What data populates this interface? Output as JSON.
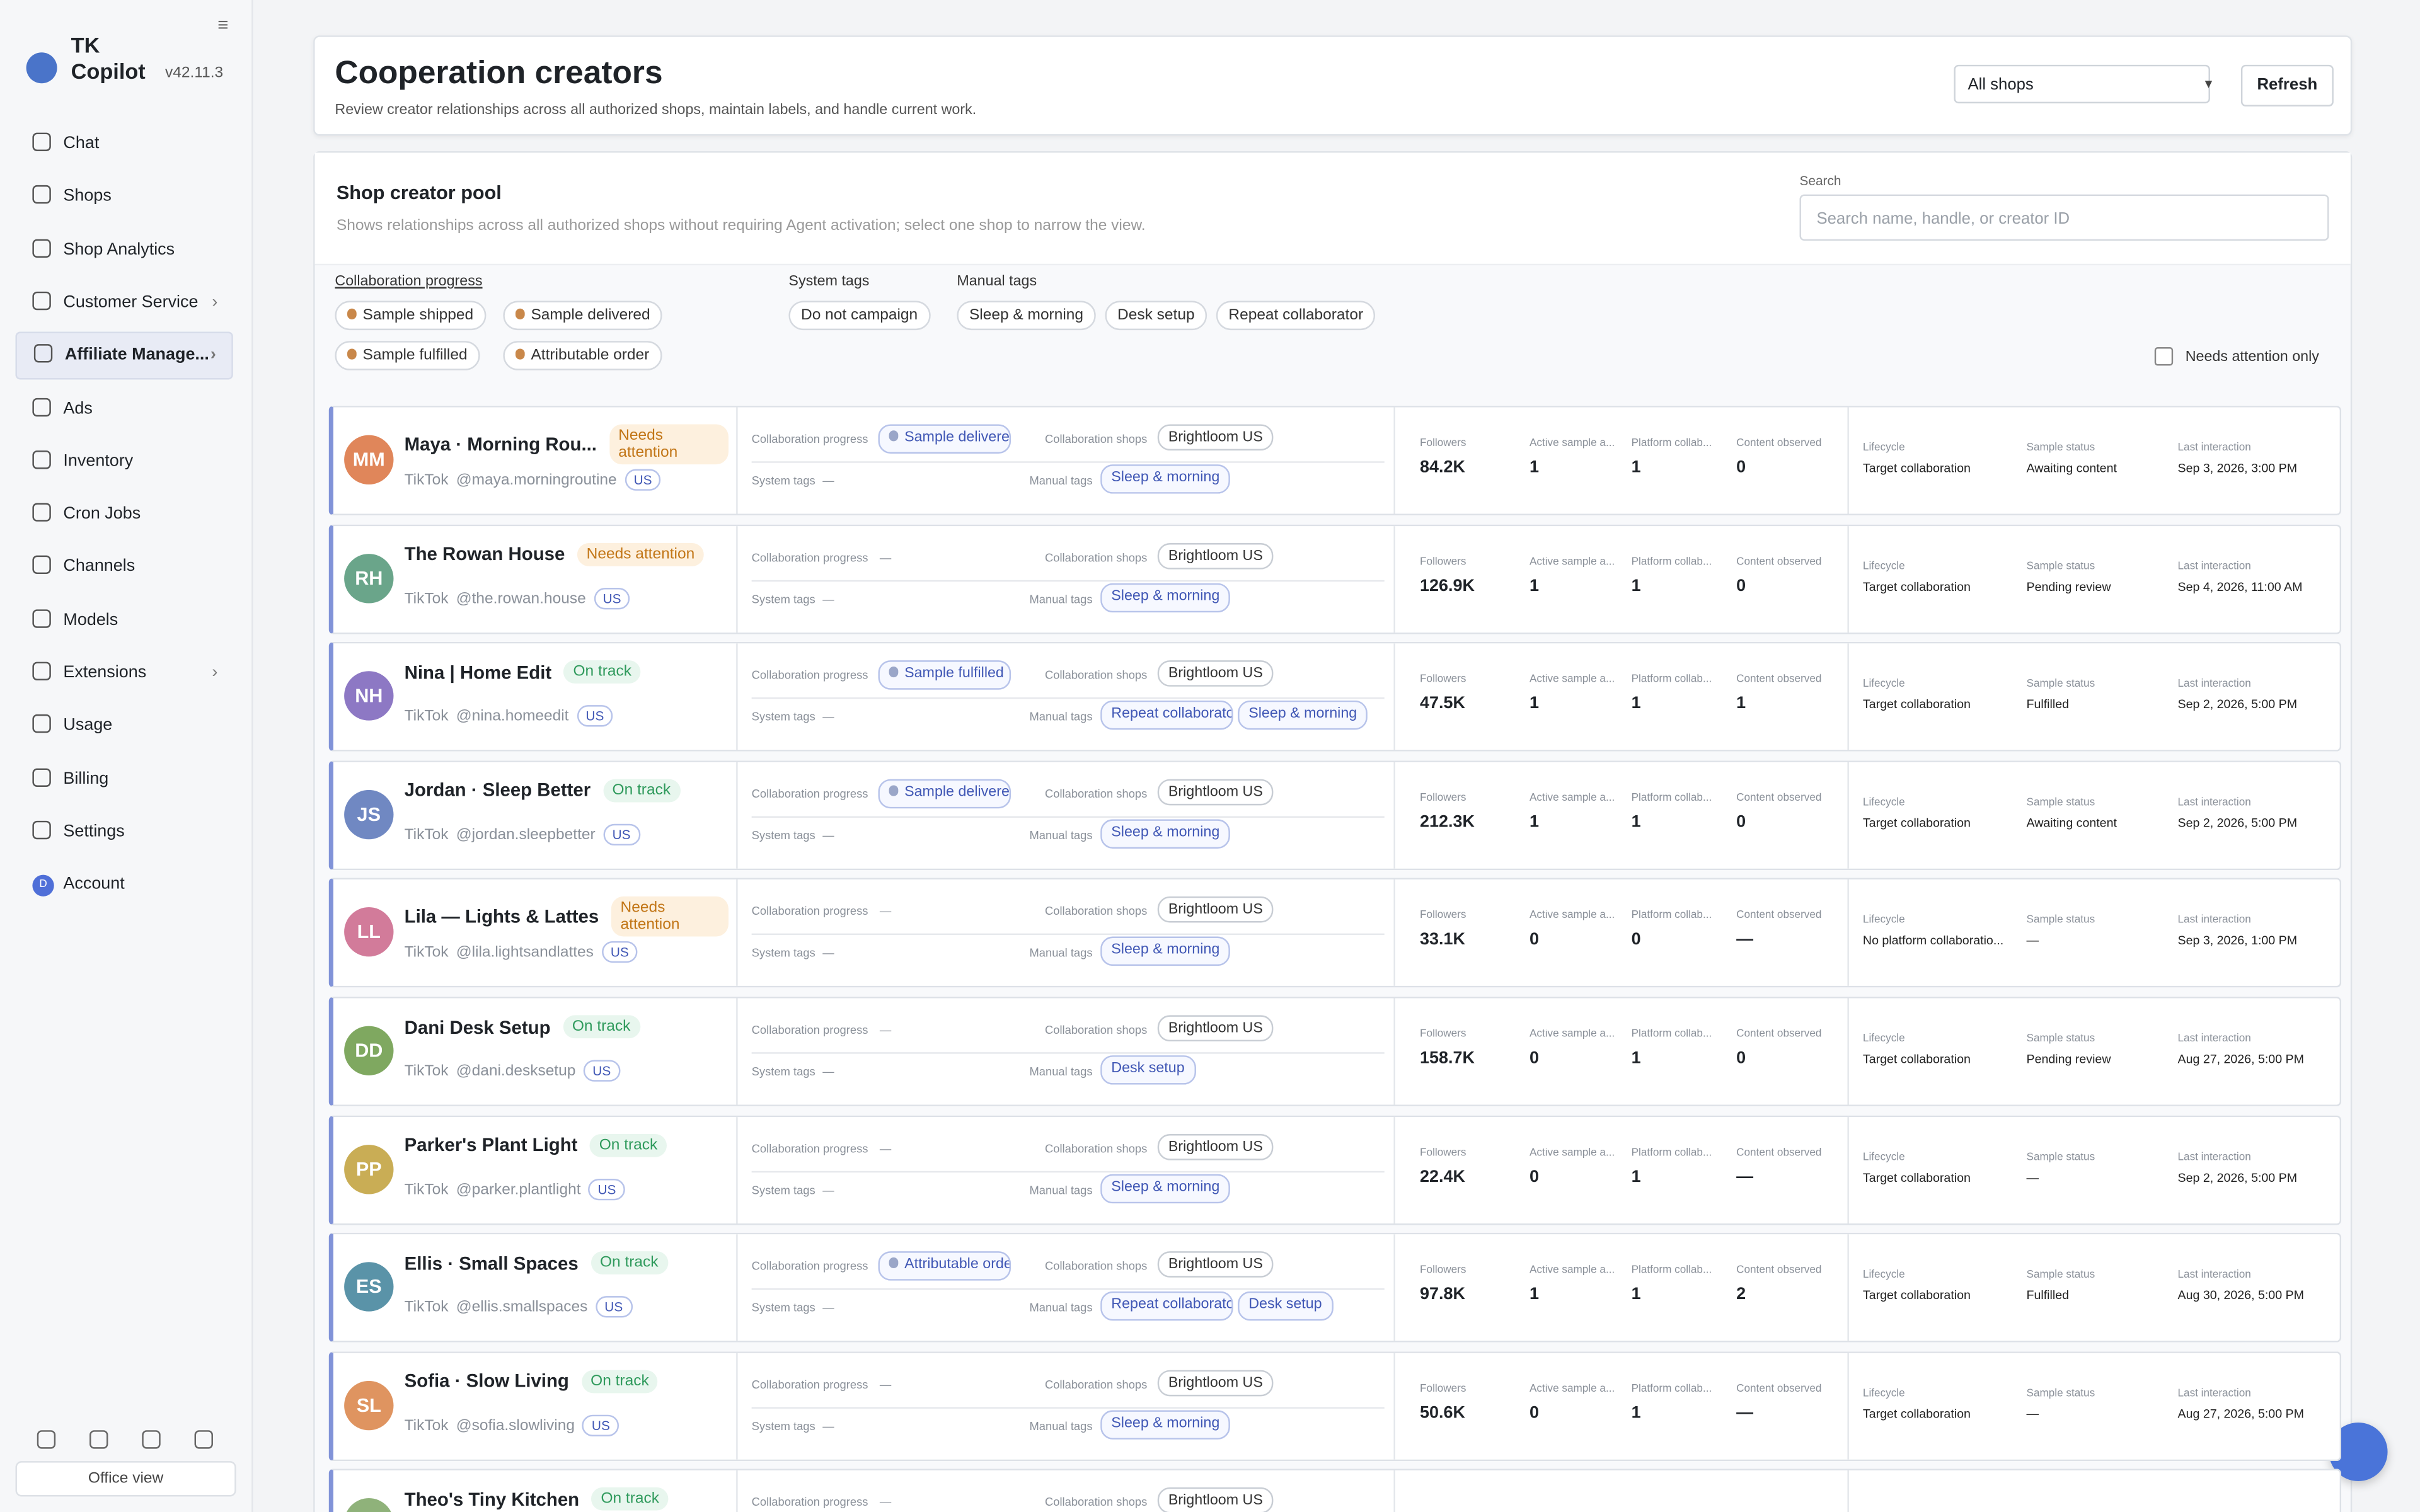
{
  "app": {
    "name": "TK Copilot",
    "version": "v42.11.3"
  },
  "nav": [
    {
      "label": "Chat"
    },
    {
      "label": "Shops"
    },
    {
      "label": "Shop Analytics"
    },
    {
      "label": "Customer Service",
      "chevron": true
    },
    {
      "label": "Affiliate Manage...",
      "chevron": true,
      "active": true
    },
    {
      "label": "Ads"
    },
    {
      "label": "Inventory"
    },
    {
      "label": "Cron Jobs"
    },
    {
      "label": "Channels"
    },
    {
      "label": "Models"
    },
    {
      "label": "Extensions",
      "chevron": true
    },
    {
      "label": "Usage"
    },
    {
      "label": "Billing"
    },
    {
      "label": "Settings"
    },
    {
      "label": "Account",
      "avatar": "D"
    }
  ],
  "footer": {
    "office_view": "Office view"
  },
  "header": {
    "title": "Cooperation creators",
    "subtitle": "Review creator relationships across all authorized shops, maintain labels, and handle current work.",
    "shop_select": "All shops",
    "refresh": "Refresh"
  },
  "pool": {
    "title": "Shop creator pool",
    "description": "Shows relationships across all authorized shops without requiring Agent activation; select one shop to narrow the view.",
    "search_label": "Search",
    "search_placeholder": "Search name, handle, or creator ID"
  },
  "filters": {
    "progress": {
      "label": "Collaboration progress",
      "tags": [
        "Sample shipped",
        "Sample delivered",
        "Sample fulfilled",
        "Attributable order"
      ]
    },
    "system": {
      "label": "System tags",
      "tags": [
        "Do not campaign"
      ]
    },
    "manual": {
      "label": "Manual tags",
      "tags": [
        "Sleep & morning",
        "Desk setup",
        "Repeat collaborator"
      ]
    },
    "needs_attention": "Needs attention only"
  },
  "fields": {
    "progress": "Collaboration progress",
    "shops": "Collaboration shops",
    "system": "System tags",
    "manual": "Manual tags",
    "followers": "Followers",
    "active": "Active sample a...",
    "platform": "Platform collab...",
    "content": "Content observed",
    "lifecycle": "Lifecycle",
    "sample_status": "Sample status",
    "last": "Last interaction"
  },
  "creators": [
    {
      "initials": "MM",
      "color": "#e0865a",
      "name": "Maya · Morning Rou...",
      "status": "Needs attention",
      "tone": "warn",
      "platform": "TikTok",
      "handle": "@maya.morningroutine",
      "region": "US",
      "progress": "Sample delivered",
      "shop": "Brightloom US",
      "system": "—",
      "manual": [
        "Sleep & morning"
      ],
      "followers": "84.2K",
      "active": 1,
      "platform_collab": 1,
      "content": 0,
      "lifecycle": "Target collaboration",
      "sample_status": "Awaiting content",
      "last": "Sep 3, 2026, 3:00 PM"
    },
    {
      "initials": "RH",
      "color": "#6aa58a",
      "name": "The Rowan House",
      "status": "Needs attention",
      "tone": "warn",
      "platform": "TikTok",
      "handle": "@the.rowan.house",
      "region": "US",
      "progress": "—",
      "shop": "Brightloom US",
      "system": "—",
      "manual": [
        "Sleep & morning"
      ],
      "followers": "126.9K",
      "active": 1,
      "platform_collab": 1,
      "content": 0,
      "lifecycle": "Target collaboration",
      "sample_status": "Pending review",
      "last": "Sep 4, 2026, 11:00 AM"
    },
    {
      "initials": "NH",
      "color": "#8d78c4",
      "name": "Nina | Home Edit",
      "status": "On track",
      "tone": "ok",
      "platform": "TikTok",
      "handle": "@nina.homeedit",
      "region": "US",
      "progress": "Sample fulfilled",
      "shop": "Brightloom US",
      "system": "—",
      "manual": [
        "Repeat collaborator",
        "Sleep & morning"
      ],
      "followers": "47.5K",
      "active": 1,
      "platform_collab": 1,
      "content": 1,
      "lifecycle": "Target collaboration",
      "sample_status": "Fulfilled",
      "last": "Sep 2, 2026, 5:00 PM"
    },
    {
      "initials": "JS",
      "color": "#7088c2",
      "name": "Jordan · Sleep Better",
      "status": "On track",
      "tone": "ok",
      "platform": "TikTok",
      "handle": "@jordan.sleepbetter",
      "region": "US",
      "progress": "Sample delivered",
      "shop": "Brightloom US",
      "system": "—",
      "manual": [
        "Sleep & morning"
      ],
      "followers": "212.3K",
      "active": 1,
      "platform_collab": 1,
      "content": 0,
      "lifecycle": "Target collaboration",
      "sample_status": "Awaiting content",
      "last": "Sep 2, 2026, 5:00 PM"
    },
    {
      "initials": "LL",
      "color": "#d27b9a",
      "name": "Lila — Lights & Lattes",
      "status": "Needs attention",
      "tone": "warn",
      "platform": "TikTok",
      "handle": "@lila.lightsandlattes",
      "region": "US",
      "progress": "—",
      "shop": "Brightloom US",
      "system": "—",
      "manual": [
        "Sleep & morning"
      ],
      "followers": "33.1K",
      "active": 0,
      "platform_collab": 0,
      "content": "—",
      "lifecycle": "No platform collaboratio...",
      "sample_status": "—",
      "last": "Sep 3, 2026, 1:00 PM"
    },
    {
      "initials": "DD",
      "color": "#7fa860",
      "name": "Dani Desk Setup",
      "status": "On track",
      "tone": "ok",
      "platform": "TikTok",
      "handle": "@dani.desksetup",
      "region": "US",
      "progress": "—",
      "shop": "Brightloom US",
      "system": "—",
      "manual": [
        "Desk setup"
      ],
      "followers": "158.7K",
      "active": 0,
      "platform_collab": 1,
      "content": 0,
      "lifecycle": "Target collaboration",
      "sample_status": "Pending review",
      "last": "Aug 27, 2026, 5:00 PM"
    },
    {
      "initials": "PP",
      "color": "#c9ad55",
      "name": "Parker's Plant Light",
      "status": "On track",
      "tone": "ok",
      "platform": "TikTok",
      "handle": "@parker.plantlight",
      "region": "US",
      "progress": "—",
      "shop": "Brightloom US",
      "system": "—",
      "manual": [
        "Sleep & morning"
      ],
      "followers": "22.4K",
      "active": 0,
      "platform_collab": 1,
      "content": "—",
      "lifecycle": "Target collaboration",
      "sample_status": "—",
      "last": "Sep 2, 2026, 5:00 PM"
    },
    {
      "initials": "ES",
      "color": "#5a93a8",
      "name": "Ellis · Small Spaces",
      "status": "On track",
      "tone": "ok",
      "platform": "TikTok",
      "handle": "@ellis.smallspaces",
      "region": "US",
      "progress": "Attributable order",
      "shop": "Brightloom US",
      "system": "—",
      "manual": [
        "Repeat collaborator",
        "Desk setup"
      ],
      "followers": "97.8K",
      "active": 1,
      "platform_collab": 1,
      "content": 2,
      "lifecycle": "Target collaboration",
      "sample_status": "Fulfilled",
      "last": "Aug 30, 2026, 5:00 PM"
    },
    {
      "initials": "SL",
      "color": "#df9460",
      "name": "Sofia · Slow Living",
      "status": "On track",
      "tone": "ok",
      "platform": "TikTok",
      "handle": "@sofia.slowliving",
      "region": "US",
      "progress": "—",
      "shop": "Brightloom US",
      "system": "—",
      "manual": [
        "Sleep & morning"
      ],
      "followers": "50.6K",
      "active": 0,
      "platform_collab": 1,
      "content": "—",
      "lifecycle": "Target collaboration",
      "sample_status": "—",
      "last": "Aug 27, 2026, 5:00 PM"
    },
    {
      "color": "#8fb27a",
      "name": "Theo's Tiny Kitchen",
      "status": "On track",
      "tone": "ok",
      "progress": "—",
      "shop": "Brightloom US"
    }
  ]
}
